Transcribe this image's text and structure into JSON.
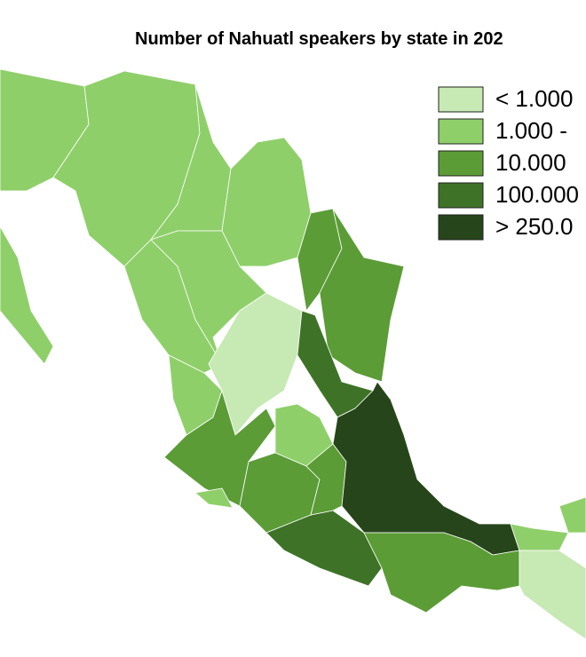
{
  "title": "Number of Nahuatl speakers by state in 202",
  "legend": [
    {
      "label": "< 1.000",
      "color": "#c7e9b4"
    },
    {
      "label": "1.000 -",
      "color": "#8fcf6a"
    },
    {
      "label": "10.000",
      "color": "#5b9c36"
    },
    {
      "label": "100.000",
      "color": "#3e7327"
    },
    {
      "label": "> 250.0",
      "color": "#27451a"
    }
  ]
}
